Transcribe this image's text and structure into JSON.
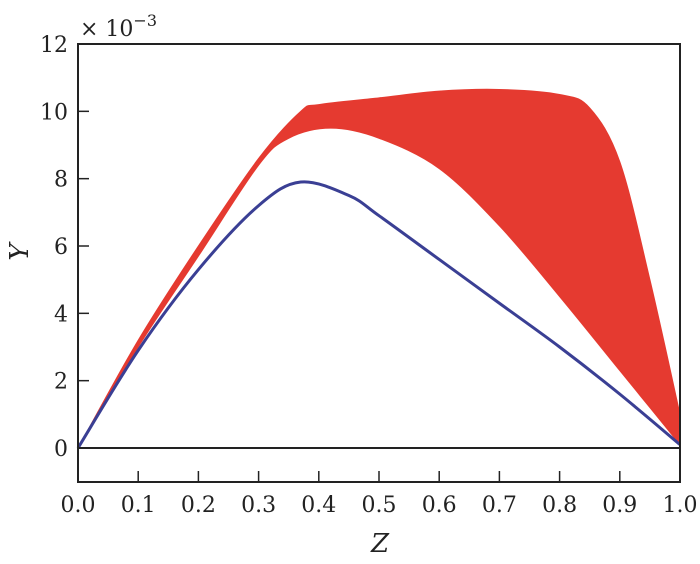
{
  "chart_data": {
    "type": "line",
    "title": "",
    "xlabel": "Z",
    "ylabel": "Y",
    "y_scale_label": "× 10^-3",
    "y_multiplier": 0.001,
    "xlim": [
      0.0,
      1.0
    ],
    "ylim": [
      -1,
      12
    ],
    "x_ticks": [
      "0.0",
      "0.1",
      "0.2",
      "0.3",
      "0.4",
      "0.5",
      "0.6",
      "0.7",
      "0.8",
      "0.9",
      "1.0"
    ],
    "y_ticks": [
      "0",
      "2",
      "4",
      "6",
      "8",
      "10",
      "12"
    ],
    "grid": false,
    "legend": null,
    "series": [
      {
        "name": "red band (family of curves)",
        "color": "#e53a30",
        "type": "filled band",
        "upper": {
          "x": [
            0,
            0.1,
            0.2,
            0.3,
            0.37,
            0.4,
            0.5,
            0.6,
            0.7,
            0.8,
            0.85,
            0.9,
            0.95,
            1.0
          ],
          "y": [
            0,
            3.2,
            6.0,
            8.6,
            10.0,
            10.2,
            10.4,
            10.6,
            10.65,
            10.5,
            10.1,
            8.5,
            5.0,
            1.0
          ]
        },
        "lower": {
          "x": [
            0,
            0.1,
            0.2,
            0.3,
            0.35,
            0.42,
            0.5,
            0.6,
            0.7,
            0.8,
            0.9,
            0.95,
            1.0
          ],
          "y": [
            0,
            3.0,
            5.7,
            8.4,
            9.2,
            9.5,
            9.2,
            8.3,
            6.6,
            4.5,
            2.3,
            1.2,
            0.1
          ]
        }
      },
      {
        "name": "blue curve",
        "color": "#3a3f94",
        "x": [
          0,
          0.1,
          0.2,
          0.3,
          0.37,
          0.45,
          0.5,
          0.6,
          0.7,
          0.8,
          0.9,
          1.0
        ],
        "y": [
          0,
          2.9,
          5.3,
          7.2,
          7.9,
          7.5,
          6.9,
          5.6,
          4.3,
          3.0,
          1.6,
          0.1
        ]
      },
      {
        "name": "zero line",
        "color": "#222222",
        "x": [
          0,
          1.0
        ],
        "y": [
          0,
          0
        ]
      }
    ]
  }
}
